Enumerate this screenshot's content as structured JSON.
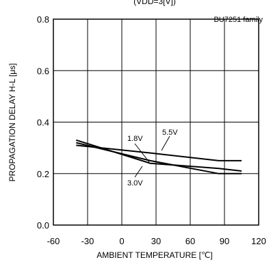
{
  "chart_data": {
    "type": "line",
    "title": "(VDD=3[V])",
    "subtitle": "BU7251 family",
    "xlabel": "AMBIENT TEMPERATURE [℃]",
    "ylabel": "PROPAGATION DELAY H-L [μs]",
    "xlim": [
      -60,
      120
    ],
    "ylim": [
      0,
      0.8
    ],
    "xticks": [
      "-60",
      "-30",
      "0",
      "30",
      "60",
      "90",
      "120"
    ],
    "yticks": [
      "0.0",
      "0.2",
      "0.4",
      "0.6",
      "0.8"
    ],
    "grid": true,
    "legend": "none",
    "series": [
      {
        "name": "1.8V",
        "x": [
          -40,
          25,
          85,
          105
        ],
        "y": [
          0.32,
          0.25,
          0.2,
          0.2
        ]
      },
      {
        "name": "3.0V",
        "x": [
          -40,
          25,
          85,
          105
        ],
        "y": [
          0.33,
          0.24,
          0.22,
          0.21
        ]
      },
      {
        "name": "5.5V",
        "x": [
          -40,
          25,
          85,
          105
        ],
        "y": [
          0.31,
          0.28,
          0.25,
          0.25
        ]
      }
    ]
  }
}
